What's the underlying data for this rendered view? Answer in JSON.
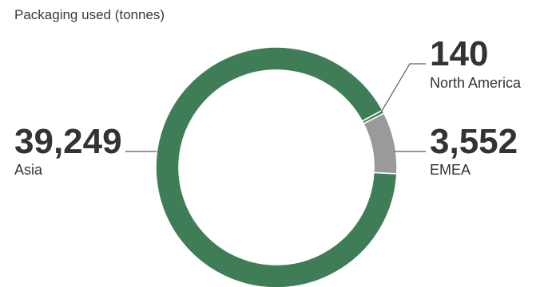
{
  "chart_data": {
    "type": "pie",
    "title": "Packaging used (tonnes)",
    "categories": [
      "Asia",
      "EMEA",
      "North America"
    ],
    "values": [
      39249,
      3552,
      140
    ],
    "value_labels": [
      "39,249",
      "3,552",
      "140"
    ],
    "colors": {
      "Asia": "#3f7d57",
      "EMEA": "#9a9a9c",
      "North America": "#3f7d57"
    },
    "donut": true,
    "legend": "none"
  }
}
